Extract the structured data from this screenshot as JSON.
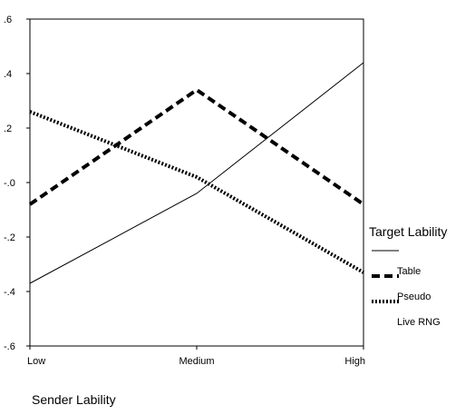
{
  "chart_data": {
    "type": "line",
    "title": "",
    "xlabel": "Sender Lability",
    "ylabel": "",
    "categories": [
      "Low",
      "Medium",
      "High"
    ],
    "ylim": [
      -0.6,
      0.6
    ],
    "yticks": [
      ".6",
      ".4",
      ".2",
      "-.0",
      "-.2",
      "-.4",
      "-.6"
    ],
    "grid": false,
    "legend": {
      "title": "Target Lability",
      "placement": "right"
    },
    "series": [
      {
        "name": "Table",
        "values": [
          -0.37,
          -0.04,
          0.44
        ],
        "style": "solid",
        "color": "#000000"
      },
      {
        "name": "Pseudo",
        "values": [
          -0.08,
          0.34,
          -0.08
        ],
        "style": "dashed",
        "color": "#000000"
      },
      {
        "name": "Live RNG",
        "values": [
          0.26,
          0.02,
          -0.33
        ],
        "style": "dotted",
        "color": "#000000"
      }
    ]
  }
}
